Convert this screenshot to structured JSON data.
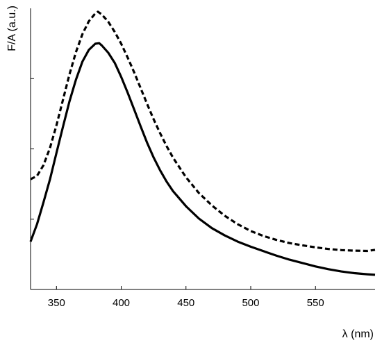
{
  "chart_data": {
    "type": "line",
    "title": "",
    "xlabel": "λ (nm)",
    "ylabel": "F/A (a.u.)",
    "xlim": [
      330,
      596
    ],
    "ylim": [
      0,
      1
    ],
    "x_ticks": [
      350,
      400,
      450,
      500,
      550
    ],
    "y_tick_labels_shown": false,
    "grid": false,
    "legend": "none",
    "series": [
      {
        "style": "dashed",
        "color": "#000000",
        "x": [
          330,
          335,
          340,
          345,
          350,
          355,
          360,
          365,
          370,
          375,
          380,
          382,
          385,
          390,
          395,
          400,
          405,
          410,
          415,
          420,
          425,
          430,
          435,
          440,
          450,
          460,
          470,
          480,
          490,
          500,
          510,
          520,
          530,
          540,
          550,
          560,
          570,
          580,
          590,
          596
        ],
        "values": [
          0.392,
          0.404,
          0.442,
          0.504,
          0.584,
          0.674,
          0.764,
          0.844,
          0.908,
          0.954,
          0.982,
          0.988,
          0.978,
          0.952,
          0.916,
          0.874,
          0.825,
          0.772,
          0.716,
          0.66,
          0.606,
          0.556,
          0.51,
          0.469,
          0.399,
          0.343,
          0.299,
          0.262,
          0.232,
          0.208,
          0.19,
          0.176,
          0.165,
          0.157,
          0.15,
          0.144,
          0.14,
          0.138,
          0.137,
          0.141
        ]
      },
      {
        "style": "solid",
        "color": "#000000",
        "x": [
          330,
          335,
          340,
          345,
          350,
          355,
          360,
          365,
          370,
          375,
          380,
          383,
          385,
          390,
          395,
          400,
          405,
          410,
          415,
          420,
          425,
          430,
          435,
          440,
          450,
          460,
          470,
          480,
          490,
          500,
          510,
          520,
          530,
          540,
          550,
          560,
          570,
          580,
          590,
          596
        ],
        "values": [
          0.17,
          0.232,
          0.31,
          0.392,
          0.486,
          0.578,
          0.668,
          0.746,
          0.81,
          0.852,
          0.874,
          0.876,
          0.868,
          0.842,
          0.806,
          0.756,
          0.7,
          0.64,
          0.58,
          0.522,
          0.47,
          0.424,
          0.384,
          0.35,
          0.296,
          0.252,
          0.218,
          0.192,
          0.17,
          0.152,
          0.136,
          0.12,
          0.106,
          0.094,
          0.082,
          0.072,
          0.064,
          0.058,
          0.054,
          0.052
        ]
      }
    ]
  }
}
